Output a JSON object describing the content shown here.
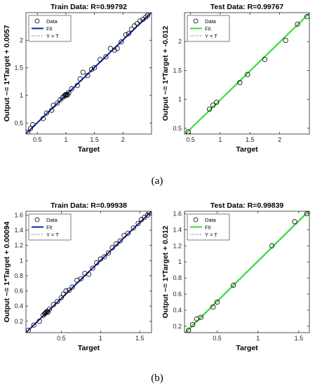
{
  "captions": {
    "a": "(a)",
    "b": "(b)"
  },
  "colors": {
    "train_fit": "#0a22b4",
    "test_fit": "#33e032",
    "data_marker": "#000000",
    "identity": "#666666"
  },
  "chart_data": [
    {
      "id": "a_train",
      "type": "scatter",
      "title": "Train Data: R=0.99792",
      "xlabel": "Target",
      "ylabel": "Output ~= 1*Target + 0.0057",
      "xlim": [
        0.3,
        2.5
      ],
      "ylim": [
        0.3,
        2.5
      ],
      "xticks": [
        0.5,
        1,
        1.5,
        2
      ],
      "xticklabels": [
        "0.5",
        "1",
        "1.5",
        "2"
      ],
      "yticks": [
        0.5,
        1,
        1.5,
        2
      ],
      "yticklabels": [
        "0.5",
        "1",
        "1.5",
        "2"
      ],
      "legend": [
        "Data",
        "Fit",
        "Y = T"
      ],
      "legend_position": "top-left",
      "fit": {
        "slope": 1,
        "intercept": 0.0057
      },
      "points": [
        [
          0.33,
          0.33
        ],
        [
          0.38,
          0.4
        ],
        [
          0.42,
          0.47
        ],
        [
          0.6,
          0.58
        ],
        [
          0.66,
          0.68
        ],
        [
          0.75,
          0.73
        ],
        [
          0.78,
          0.82
        ],
        [
          0.85,
          0.86
        ],
        [
          0.9,
          0.92
        ],
        [
          0.94,
          0.96
        ],
        [
          0.97,
          0.99
        ],
        [
          0.99,
          1.01
        ],
        [
          1.0,
          1.0
        ],
        [
          1.01,
          1.02
        ],
        [
          1.03,
          1.01
        ],
        [
          1.05,
          1.05
        ],
        [
          1.1,
          1.12
        ],
        [
          1.2,
          1.18
        ],
        [
          1.25,
          1.3
        ],
        [
          1.3,
          1.42
        ],
        [
          1.38,
          1.36
        ],
        [
          1.45,
          1.47
        ],
        [
          1.5,
          1.5
        ],
        [
          1.6,
          1.65
        ],
        [
          1.7,
          1.7
        ],
        [
          1.78,
          1.85
        ],
        [
          1.85,
          1.82
        ],
        [
          1.9,
          1.85
        ],
        [
          1.97,
          1.97
        ],
        [
          2.05,
          2.1
        ],
        [
          2.1,
          2.12
        ],
        [
          2.15,
          2.2
        ],
        [
          2.2,
          2.26
        ],
        [
          2.25,
          2.3
        ],
        [
          2.3,
          2.35
        ],
        [
          2.35,
          2.38
        ],
        [
          2.4,
          2.42
        ],
        [
          2.43,
          2.45
        ]
      ]
    },
    {
      "id": "a_test",
      "type": "scatter",
      "title": "Test Data: R=0.99767",
      "xlabel": "Target",
      "ylabel": "Output ~= 1*Target + -0.012",
      "xlim": [
        0.4,
        2.5
      ],
      "ylim": [
        0.4,
        2.5
      ],
      "xticks": [
        0.5,
        1,
        1.5,
        2
      ],
      "xticklabels": [
        "0.5",
        "1",
        "1.5",
        "2"
      ],
      "yticks": [
        0.5,
        1,
        1.5,
        2
      ],
      "yticklabels": [
        "0.5",
        "1",
        "1.5",
        "2"
      ],
      "legend": [
        "Data",
        "Fit",
        "Y = T"
      ],
      "legend_position": "top-left",
      "fit": {
        "slope": 1,
        "intercept": -0.012
      },
      "points": [
        [
          0.46,
          0.44
        ],
        [
          0.82,
          0.83
        ],
        [
          0.88,
          0.9
        ],
        [
          0.94,
          0.95
        ],
        [
          1.33,
          1.29
        ],
        [
          1.46,
          1.43
        ],
        [
          1.75,
          1.69
        ],
        [
          2.1,
          2.02
        ],
        [
          2.3,
          2.3
        ],
        [
          2.46,
          2.43
        ]
      ]
    },
    {
      "id": "b_train",
      "type": "scatter",
      "title": "Train Data: R=0.99938",
      "xlabel": "Target",
      "ylabel": "Output ~= 1*Target + 0.00094",
      "xlim": [
        0.05,
        1.65
      ],
      "ylim": [
        0.05,
        1.65
      ],
      "xticks": [
        0.5,
        1,
        1.5
      ],
      "xticklabels": [
        "0.5",
        "1",
        "1.5"
      ],
      "yticks": [
        0.2,
        0.4,
        0.6,
        0.8,
        1,
        1.2,
        1.4,
        1.6
      ],
      "yticklabels": [
        "0.2",
        "0.4",
        "0.6",
        "0.8",
        "1",
        "1.2",
        "1.4",
        "1.6"
      ],
      "legend": [
        "Data",
        "Fit",
        "Y = T"
      ],
      "legend_position": "top-left",
      "fit": {
        "slope": 1,
        "intercept": 0.00094
      },
      "points": [
        [
          0.08,
          0.08
        ],
        [
          0.15,
          0.15
        ],
        [
          0.22,
          0.2
        ],
        [
          0.27,
          0.28
        ],
        [
          0.29,
          0.3
        ],
        [
          0.3,
          0.31
        ],
        [
          0.31,
          0.32
        ],
        [
          0.32,
          0.33
        ],
        [
          0.33,
          0.32
        ],
        [
          0.35,
          0.36
        ],
        [
          0.4,
          0.42
        ],
        [
          0.45,
          0.46
        ],
        [
          0.5,
          0.51
        ],
        [
          0.53,
          0.56
        ],
        [
          0.56,
          0.6
        ],
        [
          0.6,
          0.61
        ],
        [
          0.64,
          0.65
        ],
        [
          0.7,
          0.74
        ],
        [
          0.75,
          0.76
        ],
        [
          0.8,
          0.83
        ],
        [
          0.85,
          0.82
        ],
        [
          0.9,
          0.9
        ],
        [
          0.95,
          0.97
        ],
        [
          1.0,
          1.02
        ],
        [
          1.05,
          1.05
        ],
        [
          1.1,
          1.1
        ],
        [
          1.15,
          1.17
        ],
        [
          1.2,
          1.22
        ],
        [
          1.25,
          1.26
        ],
        [
          1.3,
          1.33
        ],
        [
          1.35,
          1.36
        ],
        [
          1.42,
          1.43
        ],
        [
          1.48,
          1.49
        ],
        [
          1.52,
          1.54
        ],
        [
          1.56,
          1.57
        ],
        [
          1.6,
          1.6
        ],
        [
          1.62,
          1.63
        ]
      ]
    },
    {
      "id": "b_test",
      "type": "scatter",
      "title": "Test Data: R=0.99839",
      "xlabel": "Target",
      "ylabel": "Output ~= 1*Target + 0.012",
      "xlim": [
        0.1,
        1.63
      ],
      "ylim": [
        0.12,
        1.63
      ],
      "xticks": [
        0.5,
        1,
        1.5
      ],
      "xticklabels": [
        "0.5",
        "1",
        "1.5"
      ],
      "yticks": [
        0.2,
        0.4,
        0.6,
        0.8,
        1,
        1.2,
        1.4,
        1.6
      ],
      "yticklabels": [
        "0.2",
        "0.4",
        "0.6",
        "0.8",
        "1",
        "1.2",
        "1.4",
        "1.6"
      ],
      "legend": [
        "Data",
        "Fit",
        "Y = T"
      ],
      "legend_position": "top-left",
      "fit": {
        "slope": 1,
        "intercept": 0.012
      },
      "points": [
        [
          0.15,
          0.15
        ],
        [
          0.2,
          0.22
        ],
        [
          0.25,
          0.29
        ],
        [
          0.3,
          0.31
        ],
        [
          0.45,
          0.44
        ],
        [
          0.5,
          0.5
        ],
        [
          0.7,
          0.71
        ],
        [
          1.17,
          1.2
        ],
        [
          1.45,
          1.5
        ],
        [
          1.6,
          1.6
        ]
      ]
    }
  ]
}
